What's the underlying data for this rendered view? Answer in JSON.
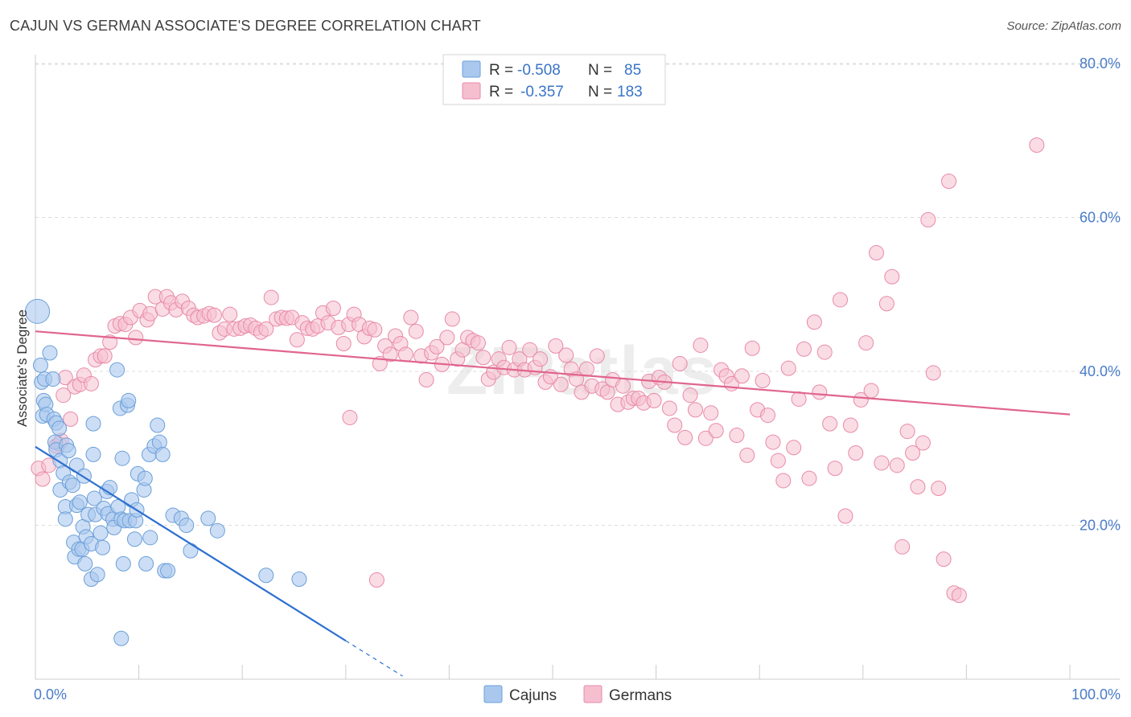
{
  "title": "CAJUN VS GERMAN ASSOCIATE'S DEGREE CORRELATION CHART",
  "source": "Source: ZipAtlas.com",
  "watermark": "ZIPatlas",
  "colors": {
    "cajun_fill": "#aac8ee",
    "cajun_stroke": "#6b9fd9",
    "cajun_line": "#2c6fcf",
    "german_fill": "#f5bfd0",
    "german_stroke": "#e88aa8",
    "german_line": "#e0658f",
    "grid": "#dddddd",
    "tick_text": "#4a7cc9"
  },
  "legend": {
    "rows": [
      {
        "r_label": "R =",
        "r_value": "-0.508",
        "n_label": "N =",
        "n_value": "85"
      },
      {
        "r_label": "R =",
        "r_value": "-0.357",
        "n_label": "N =",
        "n_value": "183"
      }
    ]
  },
  "bottom_legend": [
    "Cajuns",
    "Germans"
  ],
  "chart_data": {
    "type": "scatter",
    "title": "CAJUN VS GERMAN ASSOCIATE'S DEGREE CORRELATION CHART",
    "xlabel": "",
    "ylabel": "Associate's Degree",
    "xlim": [
      0,
      100
    ],
    "ylim": [
      0,
      80
    ],
    "x_tick_labels": [
      "0.0%",
      "100.0%"
    ],
    "y_ticks": [
      20,
      40,
      60,
      80
    ],
    "y_tick_labels": [
      "20.0%",
      "40.0%",
      "60.0%",
      "80.0%"
    ],
    "grid": true,
    "series": [
      {
        "name": "Cajuns",
        "r": -0.508,
        "n": 85,
        "trend": {
          "x0": 0,
          "y0": 30.2,
          "x1": 30,
          "y1": 5.0,
          "dash_x_end": 35.5,
          "dash_y_end": 0.4
        },
        "points": [
          [
            0.2,
            47.8
          ],
          [
            0.5,
            40.8
          ],
          [
            0.6,
            38.6
          ],
          [
            0.7,
            34.2
          ],
          [
            0.8,
            36.2
          ],
          [
            0.9,
            39.0
          ],
          [
            1.0,
            35.7
          ],
          [
            1.1,
            34.4
          ],
          [
            1.4,
            42.4
          ],
          [
            1.7,
            39.0
          ],
          [
            1.8,
            33.8
          ],
          [
            1.9,
            30.8
          ],
          [
            2.0,
            29.8
          ],
          [
            2.0,
            33.3
          ],
          [
            2.3,
            32.6
          ],
          [
            2.4,
            24.6
          ],
          [
            2.4,
            28.4
          ],
          [
            2.7,
            26.8
          ],
          [
            2.9,
            22.4
          ],
          [
            2.9,
            20.8
          ],
          [
            3.0,
            30.4
          ],
          [
            3.2,
            29.7
          ],
          [
            3.3,
            25.6
          ],
          [
            3.6,
            25.2
          ],
          [
            3.7,
            17.8
          ],
          [
            3.8,
            15.9
          ],
          [
            4.0,
            27.8
          ],
          [
            4.0,
            22.6
          ],
          [
            4.2,
            16.9
          ],
          [
            4.3,
            23.0
          ],
          [
            4.5,
            16.9
          ],
          [
            4.6,
            19.8
          ],
          [
            4.7,
            26.4
          ],
          [
            4.8,
            15.0
          ],
          [
            4.9,
            18.5
          ],
          [
            5.1,
            21.4
          ],
          [
            5.4,
            17.6
          ],
          [
            5.4,
            13.0
          ],
          [
            5.6,
            29.2
          ],
          [
            5.6,
            33.2
          ],
          [
            5.7,
            23.5
          ],
          [
            5.8,
            21.4
          ],
          [
            6.0,
            13.6
          ],
          [
            6.3,
            19.0
          ],
          [
            6.5,
            17.1
          ],
          [
            6.6,
            22.2
          ],
          [
            6.9,
            24.4
          ],
          [
            7.0,
            21.5
          ],
          [
            7.2,
            24.9
          ],
          [
            7.5,
            20.8
          ],
          [
            7.6,
            19.7
          ],
          [
            7.9,
            40.2
          ],
          [
            8.0,
            22.4
          ],
          [
            8.2,
            35.2
          ],
          [
            8.3,
            20.8
          ],
          [
            8.4,
            28.7
          ],
          [
            8.5,
            15.0
          ],
          [
            8.6,
            20.6
          ],
          [
            8.9,
            35.6
          ],
          [
            9.0,
            36.2
          ],
          [
            9.1,
            20.6
          ],
          [
            9.3,
            23.3
          ],
          [
            9.6,
            18.2
          ],
          [
            9.7,
            20.6
          ],
          [
            9.8,
            22.0
          ],
          [
            9.9,
            26.7
          ],
          [
            10.5,
            24.6
          ],
          [
            10.6,
            26.1
          ],
          [
            10.7,
            15.0
          ],
          [
            11.0,
            29.2
          ],
          [
            11.1,
            18.4
          ],
          [
            11.5,
            30.3
          ],
          [
            11.8,
            33.0
          ],
          [
            12.0,
            30.8
          ],
          [
            12.3,
            29.2
          ],
          [
            12.5,
            14.1
          ],
          [
            12.8,
            14.1
          ],
          [
            13.3,
            21.3
          ],
          [
            14.1,
            20.9
          ],
          [
            14.6,
            20.0
          ],
          [
            15.0,
            16.7
          ],
          [
            16.7,
            20.9
          ],
          [
            17.6,
            19.3
          ],
          [
            22.3,
            13.5
          ],
          [
            25.5,
            13.0
          ],
          [
            8.3,
            5.3
          ]
        ]
      },
      {
        "name": "Germans",
        "r": -0.357,
        "n": 183,
        "trend": {
          "x0": 0,
          "y0": 45.2,
          "x1": 100,
          "y1": 34.4
        },
        "points": [
          [
            0.3,
            27.4
          ],
          [
            0.7,
            26.0
          ],
          [
            1.3,
            27.8
          ],
          [
            2.0,
            30.3
          ],
          [
            2.3,
            30.6
          ],
          [
            2.9,
            39.2
          ],
          [
            3.4,
            33.8
          ],
          [
            3.8,
            38.0
          ],
          [
            4.3,
            38.3
          ],
          [
            4.7,
            39.5
          ],
          [
            5.4,
            38.4
          ],
          [
            5.8,
            41.5
          ],
          [
            6.3,
            42.0
          ],
          [
            6.7,
            42.0
          ],
          [
            7.2,
            43.8
          ],
          [
            7.7,
            45.9
          ],
          [
            8.2,
            46.2
          ],
          [
            8.7,
            46.1
          ],
          [
            9.2,
            47.0
          ],
          [
            9.7,
            44.4
          ],
          [
            10.1,
            47.9
          ],
          [
            10.8,
            46.7
          ],
          [
            11.1,
            47.5
          ],
          [
            11.6,
            49.7
          ],
          [
            12.3,
            48.1
          ],
          [
            12.7,
            49.7
          ],
          [
            13.1,
            48.9
          ],
          [
            13.6,
            48.0
          ],
          [
            14.2,
            49.1
          ],
          [
            14.8,
            48.2
          ],
          [
            15.3,
            47.3
          ],
          [
            15.7,
            47.0
          ],
          [
            16.3,
            47.2
          ],
          [
            16.8,
            47.5
          ],
          [
            17.3,
            47.3
          ],
          [
            17.8,
            45.0
          ],
          [
            18.3,
            45.5
          ],
          [
            18.8,
            47.4
          ],
          [
            19.2,
            45.5
          ],
          [
            19.8,
            45.6
          ],
          [
            20.3,
            45.9
          ],
          [
            20.8,
            46.0
          ],
          [
            21.3,
            45.6
          ],
          [
            21.8,
            45.1
          ],
          [
            22.3,
            45.5
          ],
          [
            22.8,
            49.6
          ],
          [
            23.3,
            46.8
          ],
          [
            23.8,
            47.0
          ],
          [
            24.3,
            46.9
          ],
          [
            24.8,
            47.0
          ],
          [
            25.3,
            44.1
          ],
          [
            25.8,
            46.3
          ],
          [
            26.3,
            45.6
          ],
          [
            26.8,
            45.5
          ],
          [
            27.3,
            45.9
          ],
          [
            27.8,
            47.6
          ],
          [
            28.3,
            46.3
          ],
          [
            28.8,
            48.2
          ],
          [
            29.3,
            45.7
          ],
          [
            29.8,
            43.6
          ],
          [
            30.3,
            46.1
          ],
          [
            30.8,
            47.4
          ],
          [
            31.3,
            46.1
          ],
          [
            31.8,
            44.5
          ],
          [
            32.3,
            45.6
          ],
          [
            32.8,
            45.4
          ],
          [
            33.3,
            41.0
          ],
          [
            33.8,
            43.3
          ],
          [
            34.3,
            42.2
          ],
          [
            34.8,
            44.6
          ],
          [
            35.3,
            43.6
          ],
          [
            35.8,
            42.2
          ],
          [
            36.3,
            47.0
          ],
          [
            36.8,
            45.2
          ],
          [
            37.3,
            42.0
          ],
          [
            37.8,
            38.9
          ],
          [
            38.3,
            42.4
          ],
          [
            38.8,
            43.2
          ],
          [
            39.3,
            40.9
          ],
          [
            39.8,
            44.4
          ],
          [
            40.3,
            46.8
          ],
          [
            40.8,
            41.6
          ],
          [
            41.3,
            42.8
          ],
          [
            41.8,
            44.4
          ],
          [
            42.3,
            44.0
          ],
          [
            42.8,
            43.7
          ],
          [
            43.3,
            41.8
          ],
          [
            43.8,
            39.0
          ],
          [
            44.3,
            39.9
          ],
          [
            44.8,
            41.6
          ],
          [
            45.3,
            40.5
          ],
          [
            45.8,
            43.1
          ],
          [
            46.3,
            40.2
          ],
          [
            46.8,
            41.6
          ],
          [
            47.3,
            40.2
          ],
          [
            47.8,
            42.8
          ],
          [
            48.3,
            40.5
          ],
          [
            48.8,
            41.6
          ],
          [
            49.3,
            38.6
          ],
          [
            49.8,
            39.3
          ],
          [
            50.3,
            43.3
          ],
          [
            50.8,
            38.3
          ],
          [
            51.3,
            42.1
          ],
          [
            51.8,
            40.3
          ],
          [
            52.3,
            39.0
          ],
          [
            52.8,
            37.3
          ],
          [
            53.3,
            40.3
          ],
          [
            53.8,
            38.1
          ],
          [
            54.3,
            42.0
          ],
          [
            54.8,
            37.7
          ],
          [
            55.3,
            37.3
          ],
          [
            55.8,
            38.9
          ],
          [
            56.3,
            35.7
          ],
          [
            56.8,
            38.1
          ],
          [
            57.3,
            36.0
          ],
          [
            57.8,
            36.5
          ],
          [
            58.3,
            36.5
          ],
          [
            58.8,
            35.9
          ],
          [
            59.3,
            38.7
          ],
          [
            59.8,
            36.2
          ],
          [
            60.3,
            39.2
          ],
          [
            60.8,
            38.6
          ],
          [
            61.3,
            35.2
          ],
          [
            61.8,
            33.0
          ],
          [
            62.3,
            41.0
          ],
          [
            62.8,
            31.4
          ],
          [
            63.3,
            36.9
          ],
          [
            63.8,
            35.0
          ],
          [
            64.3,
            43.4
          ],
          [
            64.8,
            31.3
          ],
          [
            65.3,
            34.6
          ],
          [
            65.8,
            32.3
          ],
          [
            66.3,
            40.2
          ],
          [
            66.8,
            39.4
          ],
          [
            67.3,
            38.4
          ],
          [
            67.8,
            31.7
          ],
          [
            68.3,
            39.4
          ],
          [
            68.8,
            29.1
          ],
          [
            69.3,
            43.0
          ],
          [
            69.8,
            35.0
          ],
          [
            70.3,
            38.8
          ],
          [
            70.8,
            34.3
          ],
          [
            71.3,
            30.8
          ],
          [
            71.8,
            28.4
          ],
          [
            72.3,
            25.8
          ],
          [
            72.8,
            40.4
          ],
          [
            73.3,
            30.1
          ],
          [
            73.8,
            36.4
          ],
          [
            74.3,
            42.9
          ],
          [
            74.8,
            26.1
          ],
          [
            75.3,
            46.4
          ],
          [
            75.8,
            37.3
          ],
          [
            76.3,
            42.5
          ],
          [
            76.8,
            33.2
          ],
          [
            77.3,
            27.4
          ],
          [
            77.8,
            49.3
          ],
          [
            78.3,
            21.2
          ],
          [
            78.8,
            33.0
          ],
          [
            79.3,
            29.4
          ],
          [
            79.8,
            36.3
          ],
          [
            80.3,
            43.7
          ],
          [
            80.8,
            37.5
          ],
          [
            81.3,
            55.4
          ],
          [
            81.8,
            28.1
          ],
          [
            82.3,
            48.8
          ],
          [
            82.8,
            52.3
          ],
          [
            83.3,
            27.8
          ],
          [
            83.8,
            17.2
          ],
          [
            84.3,
            32.2
          ],
          [
            84.8,
            29.4
          ],
          [
            85.3,
            25.0
          ],
          [
            85.8,
            30.7
          ],
          [
            86.3,
            59.7
          ],
          [
            86.8,
            39.8
          ],
          [
            87.3,
            24.8
          ],
          [
            87.8,
            15.6
          ],
          [
            88.3,
            64.7
          ],
          [
            88.8,
            11.2
          ],
          [
            89.3,
            10.9
          ],
          [
            96.8,
            69.4
          ],
          [
            30.4,
            34.0
          ],
          [
            33.0,
            12.9
          ],
          [
            2.5,
            31.0
          ],
          [
            2.7,
            36.9
          ]
        ]
      }
    ]
  }
}
